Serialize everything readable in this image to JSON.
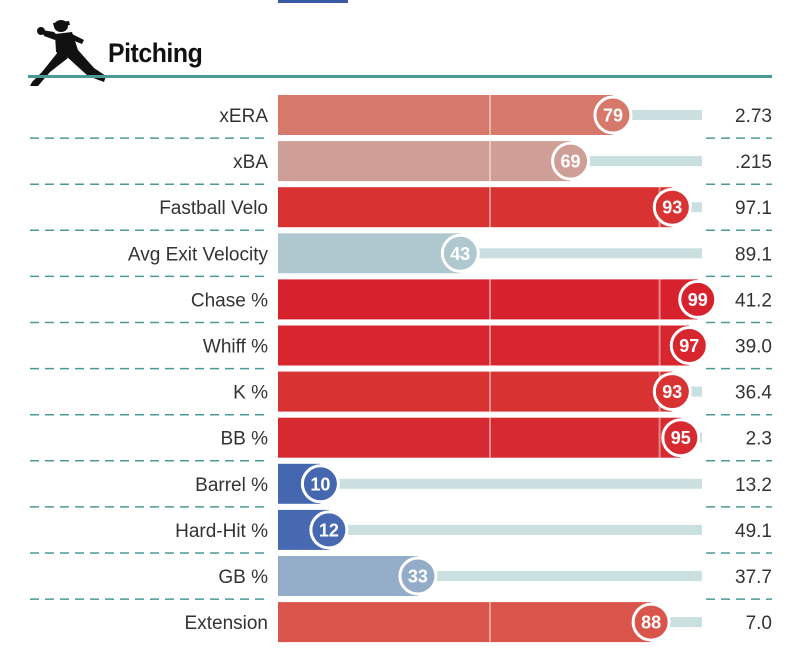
{
  "header": {
    "title": "Pitching",
    "icon": "pitcher-silhouette-icon"
  },
  "colors": {
    "rule": "#4a9a98",
    "track": "#c9dfe0",
    "high": "#d7262e",
    "low": "#3f64ad"
  },
  "chart_data": {
    "type": "bar",
    "orientation": "horizontal",
    "xlim": [
      0,
      100
    ],
    "metrics": [
      {
        "label": "xERA",
        "percentile": 79,
        "value": "2.73",
        "color": "#d6786a"
      },
      {
        "label": "xBA",
        "percentile": 69,
        "value": ".215",
        "color": "#cf9e96"
      },
      {
        "label": "Fastball Velo",
        "percentile": 93,
        "value": "97.1",
        "color": "#d83232"
      },
      {
        "label": "Avg Exit Velocity",
        "percentile": 43,
        "value": "89.1",
        "color": "#afc7cf"
      },
      {
        "label": "Chase %",
        "percentile": 99,
        "value": "41.2",
        "color": "#d7222e"
      },
      {
        "label": "Whiff %",
        "percentile": 97,
        "value": "39.0",
        "color": "#d7262e"
      },
      {
        "label": "K %",
        "percentile": 93,
        "value": "36.4",
        "color": "#d83232"
      },
      {
        "label": "BB %",
        "percentile": 95,
        "value": "2.3",
        "color": "#d72a30"
      },
      {
        "label": "Barrel %",
        "percentile": 10,
        "value": "13.2",
        "color": "#4467b0"
      },
      {
        "label": "Hard-Hit %",
        "percentile": 12,
        "value": "49.1",
        "color": "#4769b1"
      },
      {
        "label": "GB %",
        "percentile": 33,
        "value": "37.7",
        "color": "#93adc8"
      },
      {
        "label": "Extension",
        "percentile": 88,
        "value": "7.0",
        "color": "#d9544a"
      }
    ]
  }
}
